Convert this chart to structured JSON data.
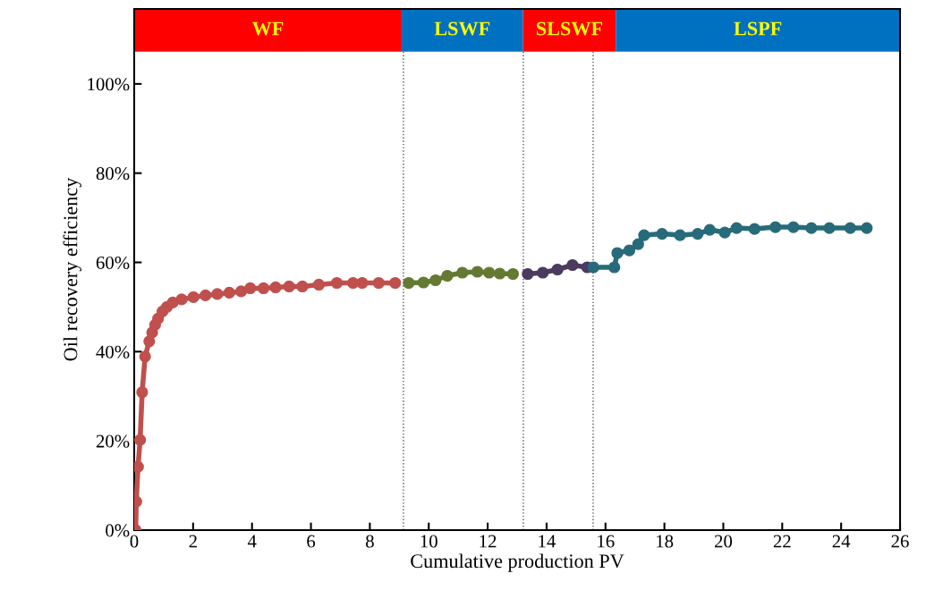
{
  "chart_data": {
    "type": "line",
    "xlabel": "Cumulative production PV",
    "ylabel": "Oil recovery efficiency",
    "xlim": [
      0,
      26
    ],
    "xticks": [
      0,
      2,
      4,
      6,
      8,
      10,
      12,
      14,
      16,
      18,
      20,
      22,
      24,
      26
    ],
    "ylim": [
      0,
      1.168
    ],
    "yticks": [
      {
        "value": 0,
        "label": "0%"
      },
      {
        "value": 0.2,
        "label": "20%"
      },
      {
        "value": 0.4,
        "label": "40%"
      },
      {
        "value": 0.6,
        "label": "60%"
      },
      {
        "value": 0.8,
        "label": "80%"
      },
      {
        "value": 1.0,
        "label": "100%"
      }
    ],
    "grid": false,
    "legend": false,
    "marker": "circle",
    "line_style": "solid",
    "series": [
      {
        "color": "#c0504d",
        "x": [
          0.05,
          0.07,
          0.13,
          0.2,
          0.27,
          0.37,
          0.51,
          0.61,
          0.71,
          0.81,
          0.96,
          1.11,
          1.31,
          1.61,
          2.01,
          2.42,
          2.82,
          3.23,
          3.63,
          3.94,
          4.39,
          4.8,
          5.26,
          5.71,
          6.27,
          6.88,
          7.43,
          7.74,
          8.3,
          8.86
        ],
        "values": [
          0,
          0.064,
          0.142,
          0.202,
          0.309,
          0.389,
          0.423,
          0.443,
          0.46,
          0.474,
          0.49,
          0.5,
          0.51,
          0.517,
          0.522,
          0.526,
          0.529,
          0.532,
          0.535,
          0.542,
          0.542,
          0.544,
          0.546,
          0.546,
          0.55,
          0.554,
          0.554,
          0.554,
          0.554,
          0.554
        ]
      },
      {
        "color": "#647a32",
        "x": [
          9.32,
          9.82,
          10.23,
          10.63,
          11.14,
          11.65,
          12.05,
          12.41,
          12.86
        ],
        "values": [
          0.554,
          0.555,
          0.56,
          0.57,
          0.577,
          0.579,
          0.577,
          0.575,
          0.574
        ]
      },
      {
        "color": "#4a3b5f",
        "x": [
          13.36,
          13.87,
          14.37,
          14.88,
          15.38
        ],
        "values": [
          0.574,
          0.577,
          0.584,
          0.594,
          0.589
        ]
      },
      {
        "color": "#276b7a",
        "x": [
          15.59,
          16.3,
          16.4,
          16.81,
          17.11,
          17.31,
          17.92,
          18.53,
          19.13,
          19.54,
          20.05,
          20.45,
          21.06,
          21.77,
          22.38,
          22.99,
          23.6,
          24.31,
          24.87
        ],
        "values": [
          0.589,
          0.589,
          0.621,
          0.627,
          0.641,
          0.661,
          0.664,
          0.661,
          0.664,
          0.673,
          0.667,
          0.677,
          0.675,
          0.679,
          0.679,
          0.677,
          0.677,
          0.677,
          0.677
        ]
      }
    ],
    "ref_lines": [
      {
        "axis": "x",
        "value": 9.14,
        "color": "#555555",
        "line_style": "dotted"
      },
      {
        "axis": "x",
        "value": 13.21,
        "color": "#555555",
        "line_style": "dotted"
      },
      {
        "axis": "x",
        "value": 15.58,
        "color": "#555555",
        "line_style": "dotted"
      }
    ],
    "bands": [
      {
        "axis": "x",
        "from": 0,
        "to": 9.08,
        "label": "WF",
        "color": "#ff0000"
      },
      {
        "axis": "x",
        "from": 9.08,
        "to": 13.2,
        "label": "LSWF",
        "color": "#0070c0"
      },
      {
        "axis": "x",
        "from": 13.2,
        "to": 16.35,
        "label": "SLSWF",
        "color": "#ff0000"
      },
      {
        "axis": "x",
        "from": 16.35,
        "to": 26,
        "label": "LSPF",
        "color": "#0070c0"
      }
    ]
  }
}
